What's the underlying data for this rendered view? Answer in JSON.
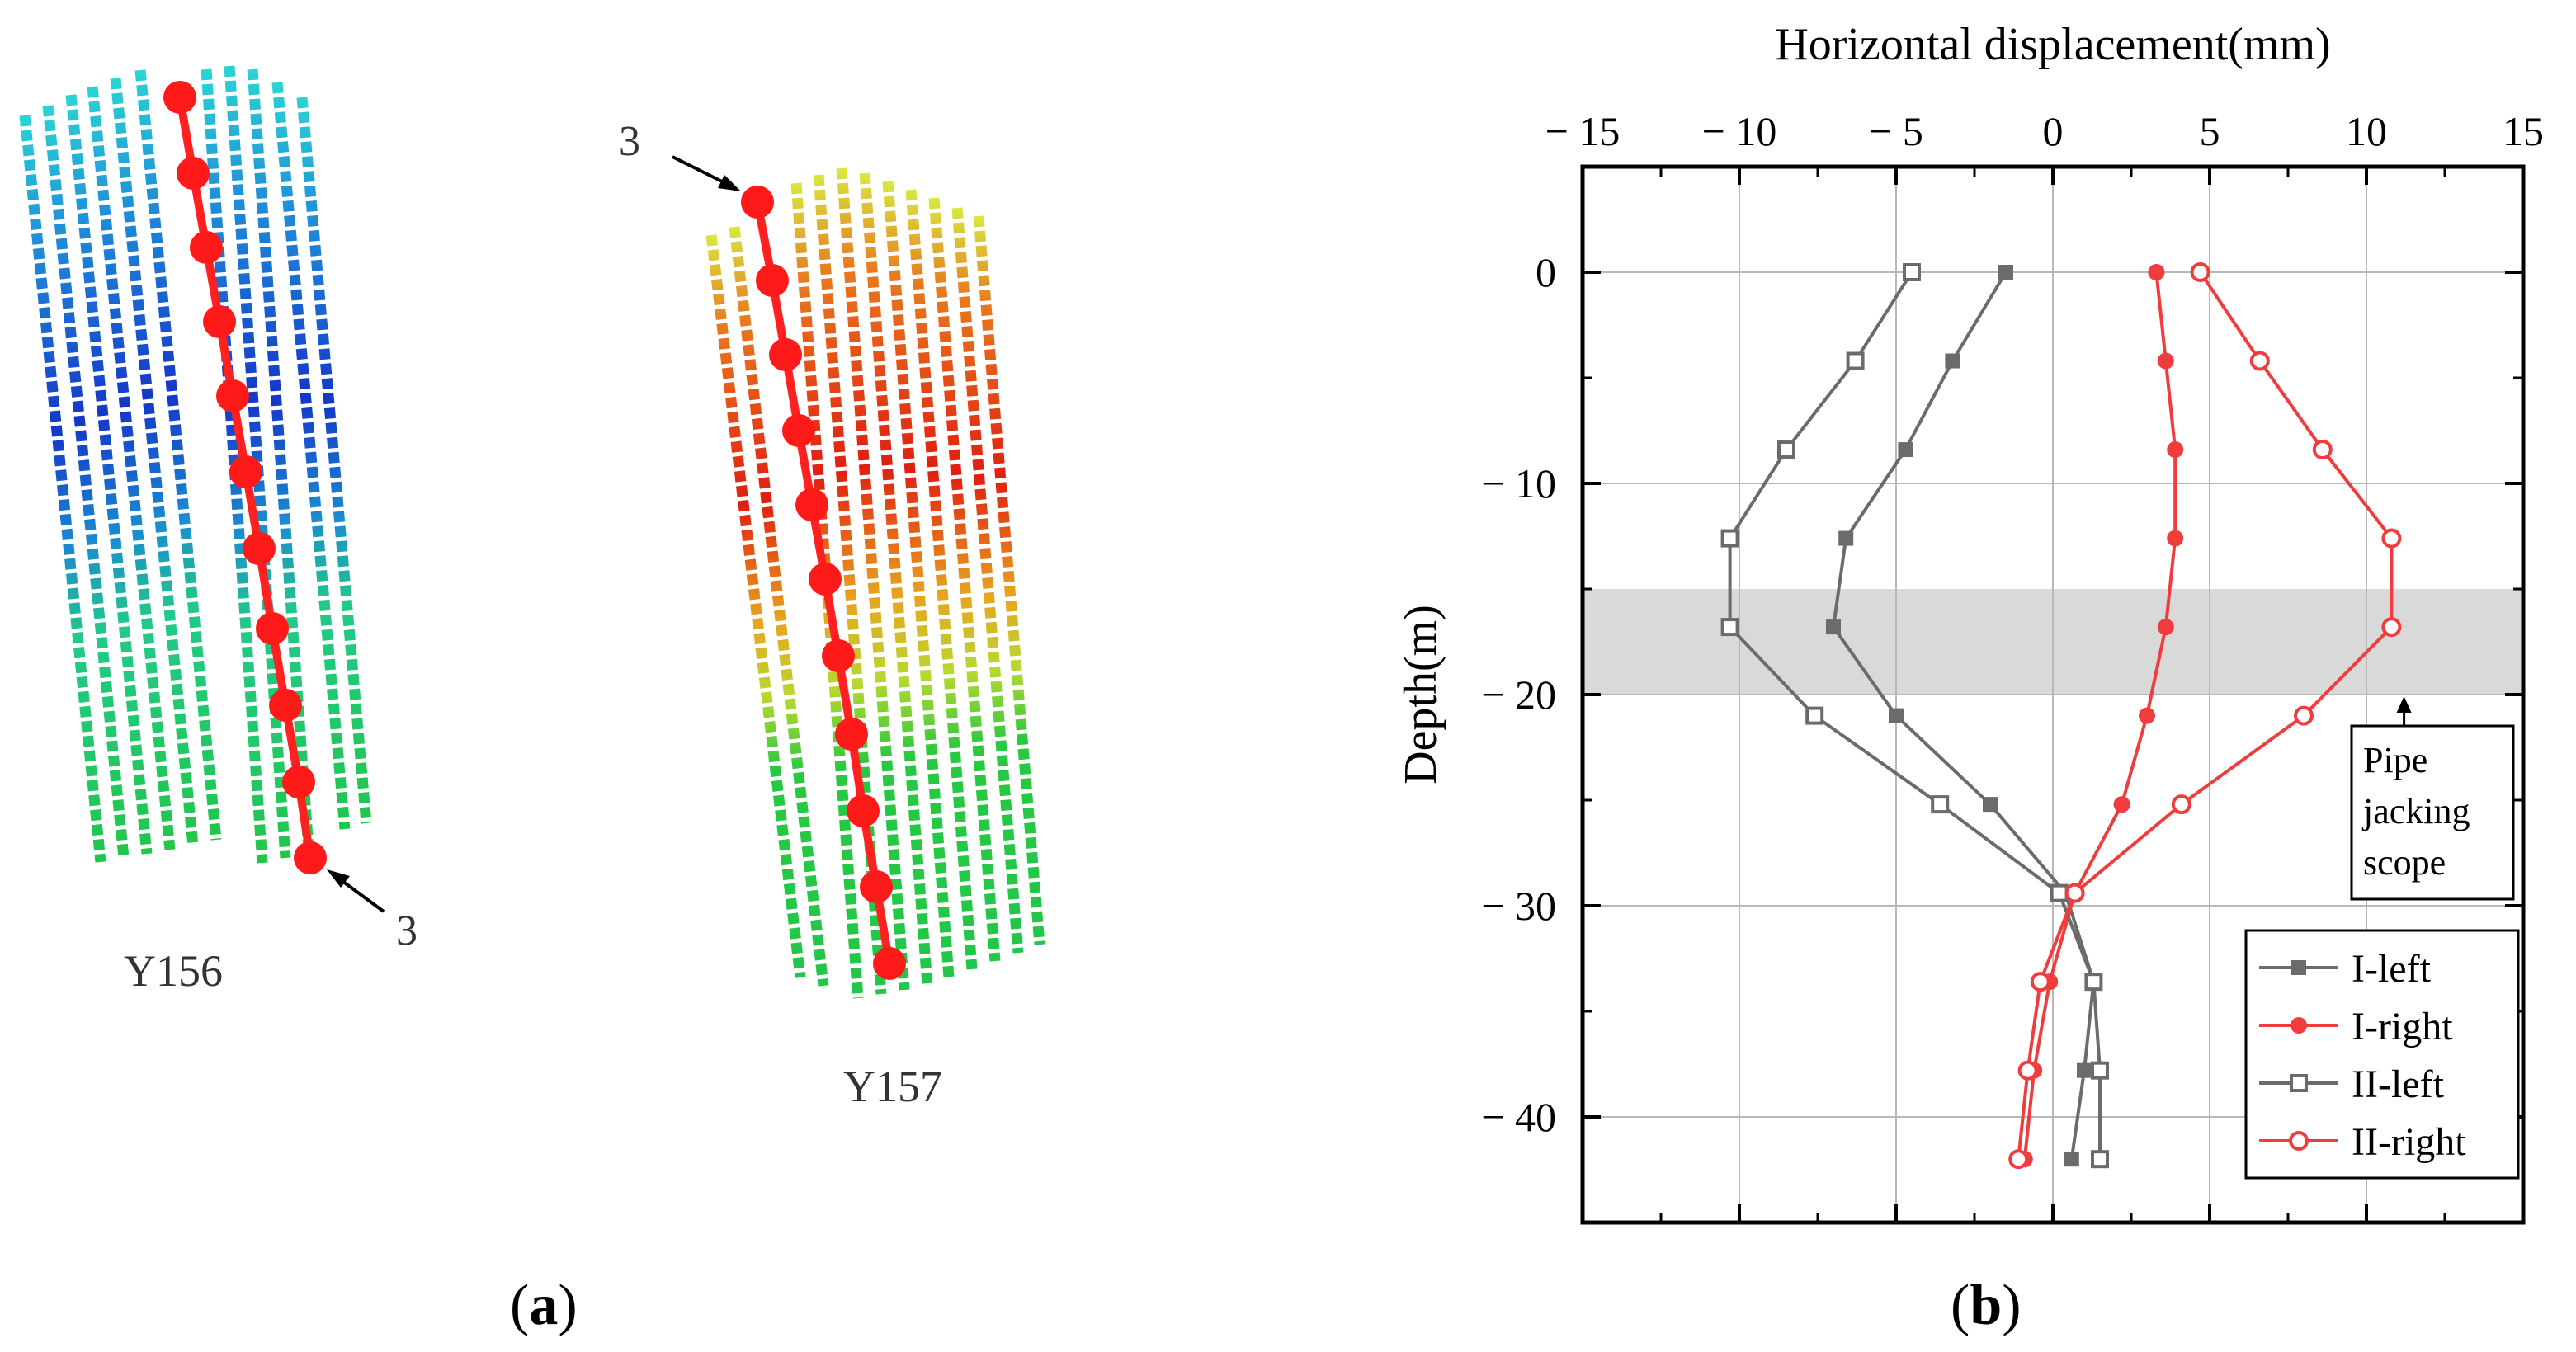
{
  "figure": {
    "panel_a": {
      "label_text": "(a)",
      "label_bold": "a",
      "model_1": {
        "name": "Y156",
        "marker_label": "3"
      },
      "model_2": {
        "name": "Y157",
        "marker_label": "3"
      }
    },
    "panel_b": {
      "label_text": "(b)",
      "label_bold": "b"
    }
  },
  "chart_data": {
    "type": "line",
    "title": "",
    "xlabel": "Horizontal displacement(mm)",
    "ylabel": "Depth(m)",
    "xlim": [
      -15,
      15
    ],
    "ylim": [
      -45,
      5
    ],
    "x_ticks": [
      -15,
      -10,
      -5,
      0,
      5,
      10,
      15
    ],
    "y_ticks": [
      0,
      -10,
      -20,
      -30,
      -40
    ],
    "x_tick_labels": [
      "− 15",
      "− 10",
      "− 5",
      "0",
      "5",
      "10",
      "15"
    ],
    "y_tick_labels": [
      "0",
      "− 10",
      "− 20",
      "− 30",
      "− 40"
    ],
    "grid": true,
    "x_axis_position": "top",
    "legend_position": "bottom-right",
    "shaded_band": {
      "from": -15,
      "to": -20,
      "color": "#d9d9d9"
    },
    "annotation": {
      "lines": [
        "Pipe",
        "jacking",
        "scope"
      ]
    },
    "series": [
      {
        "name": "I-left",
        "color": "#6b6b6b",
        "marker": "square-filled",
        "points": [
          [
            -1.5,
            0
          ],
          [
            -3.2,
            -4.2
          ],
          [
            -4.7,
            -8.4
          ],
          [
            -6.6,
            -12.6
          ],
          [
            -7.0,
            -16.8
          ],
          [
            -5.0,
            -21.0
          ],
          [
            -2.0,
            -25.2
          ],
          [
            0.4,
            -29.4
          ],
          [
            1.3,
            -33.6
          ],
          [
            1.0,
            -37.8
          ],
          [
            0.6,
            -42.0
          ]
        ]
      },
      {
        "name": "I-right",
        "color": "#f03c3c",
        "marker": "circle-filled",
        "points": [
          [
            3.3,
            0
          ],
          [
            3.6,
            -4.2
          ],
          [
            3.9,
            -8.4
          ],
          [
            3.9,
            -12.6
          ],
          [
            3.6,
            -16.8
          ],
          [
            3.0,
            -21.0
          ],
          [
            2.2,
            -25.2
          ],
          [
            0.7,
            -29.4
          ],
          [
            -0.1,
            -33.6
          ],
          [
            -0.6,
            -37.8
          ],
          [
            -0.9,
            -42.0
          ]
        ]
      },
      {
        "name": "II-left",
        "color": "#6b6b6b",
        "marker": "square-open",
        "points": [
          [
            -4.5,
            0
          ],
          [
            -6.3,
            -4.2
          ],
          [
            -8.5,
            -8.4
          ],
          [
            -10.3,
            -12.6
          ],
          [
            -10.3,
            -16.8
          ],
          [
            -7.6,
            -21.0
          ],
          [
            -3.6,
            -25.2
          ],
          [
            0.2,
            -29.4
          ],
          [
            1.3,
            -33.6
          ],
          [
            1.5,
            -37.8
          ],
          [
            1.5,
            -42.0
          ]
        ]
      },
      {
        "name": "II-right",
        "color": "#f03c3c",
        "marker": "circle-open",
        "points": [
          [
            4.7,
            0
          ],
          [
            6.6,
            -4.2
          ],
          [
            8.6,
            -8.4
          ],
          [
            10.8,
            -12.6
          ],
          [
            10.8,
            -16.8
          ],
          [
            8.0,
            -21.0
          ],
          [
            4.1,
            -25.2
          ],
          [
            0.7,
            -29.4
          ],
          [
            -0.4,
            -33.6
          ],
          [
            -0.8,
            -37.8
          ],
          [
            -1.1,
            -42.0
          ]
        ]
      }
    ]
  }
}
